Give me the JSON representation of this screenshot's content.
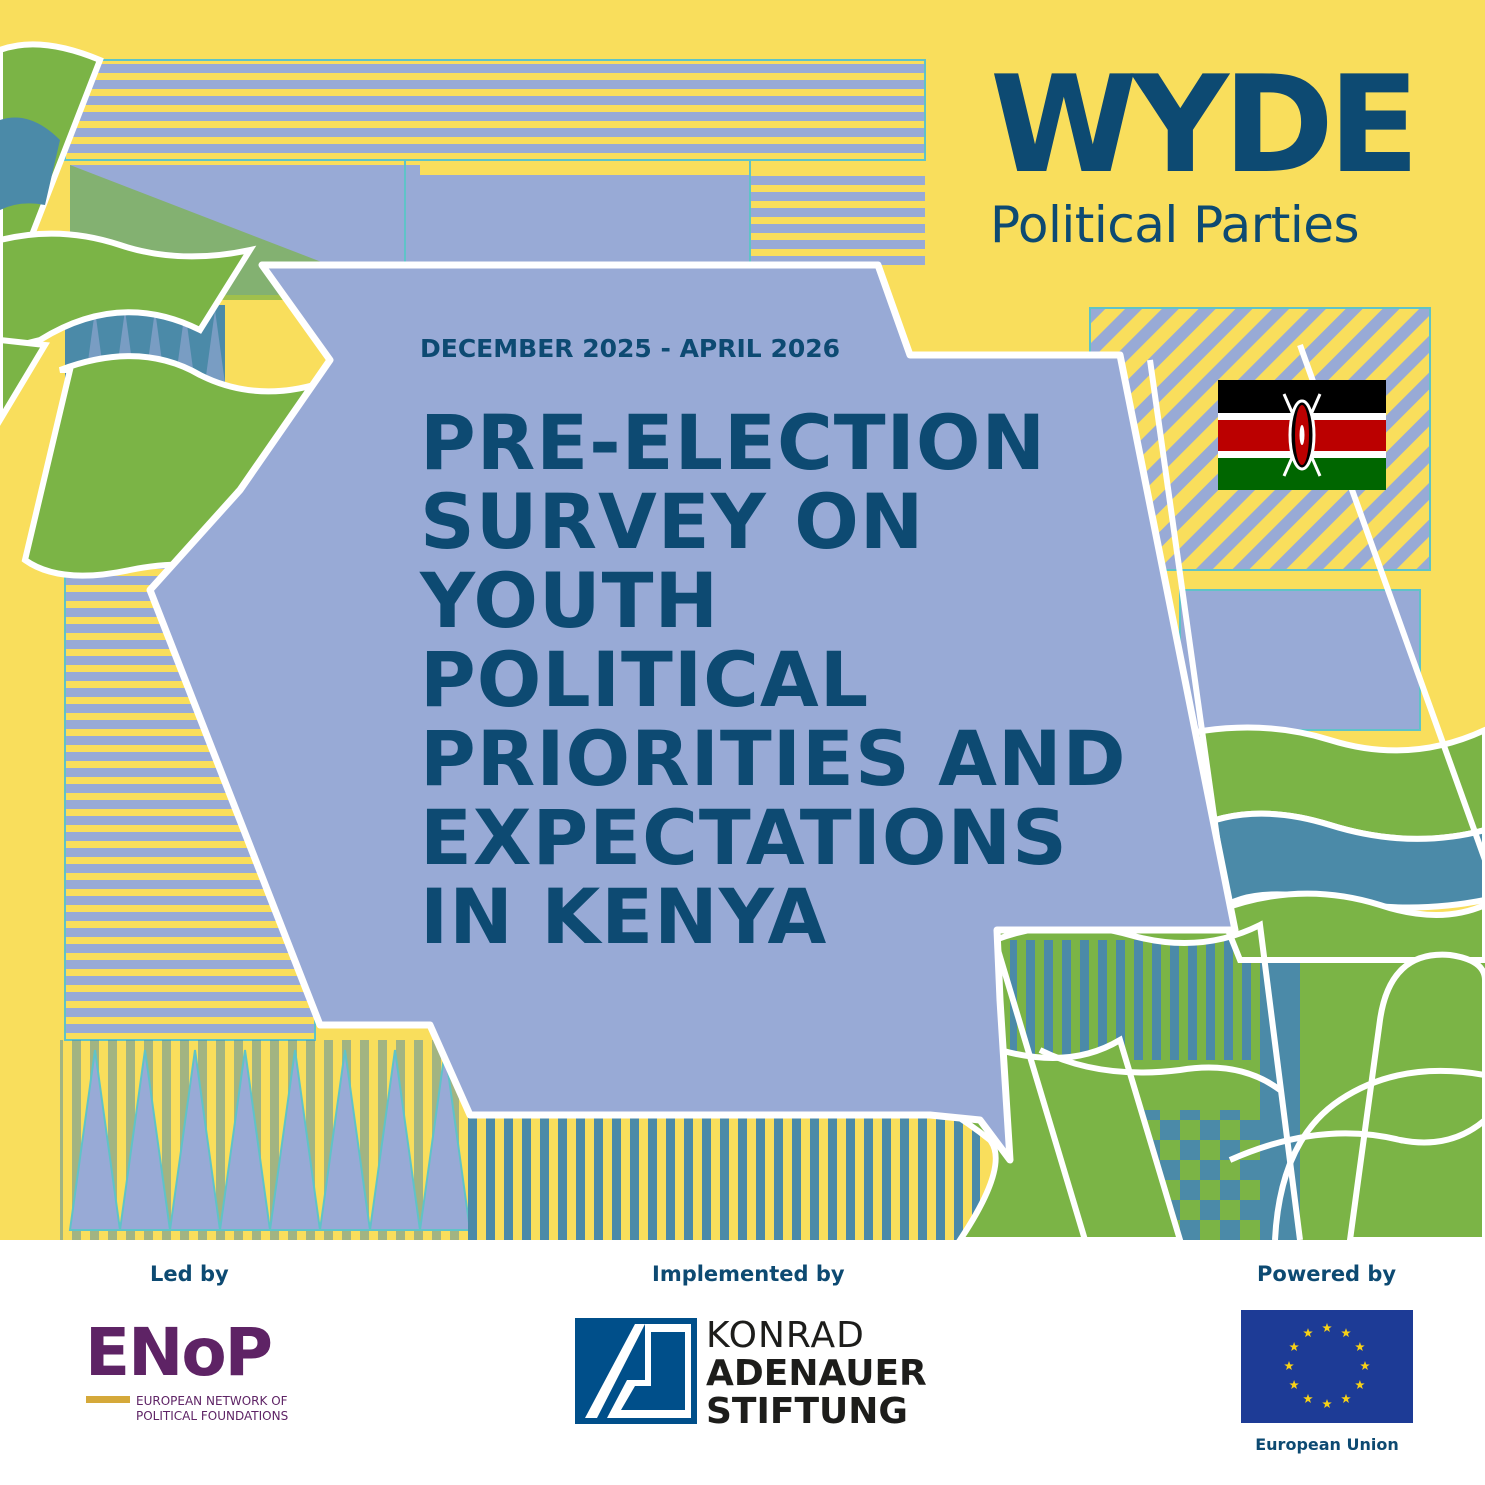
{
  "header": {
    "brand": "WYDE",
    "brand_subtitle": "Political Parties"
  },
  "cover": {
    "date_range": "DECEMBER 2025 - APRIL 2026",
    "title_lines": [
      "PRE-ELECTION",
      "SURVEY ON",
      "YOUTH",
      "POLITICAL",
      "PRIORITIES AND",
      "EXPECTATIONS",
      "IN KENYA"
    ],
    "flag_icon": "kenya-flag-icon"
  },
  "footer": {
    "led_by_label": "Led by",
    "implemented_by_label": "Implemented by",
    "powered_by_label": "Powered by",
    "enop": {
      "wordmark": "ENoP",
      "subtitle_lines": [
        "EUROPEAN NETWORK OF",
        "POLITICAL FOUNDATIONS"
      ]
    },
    "kas": {
      "line1": "KONRAD",
      "line2": "ADENAUER",
      "line3": "STIFTUNG"
    },
    "eu": {
      "caption": "European Union",
      "icon": "eu-flag-icon"
    }
  },
  "colors": {
    "background_yellow": "#f9de5c",
    "panel_lavender": "#98aad6",
    "accent_green": "#7bb446",
    "accent_teal": "#4b8aa8",
    "text_navy": "#0d4a72",
    "enop_purple": "#5e2365",
    "kas_blue": "#004f8a",
    "eu_blue": "#1d3b96"
  }
}
